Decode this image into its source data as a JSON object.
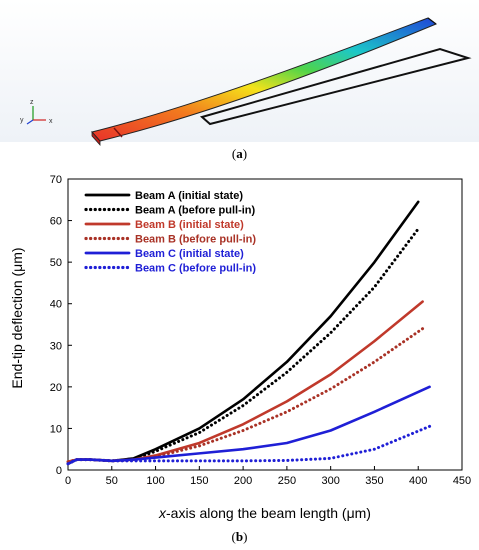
{
  "panel_a": {
    "label_open": "(",
    "label_letter": "a",
    "label_close": ")",
    "axis_triad": {
      "z": "z",
      "y": "y",
      "x": "x"
    }
  },
  "panel_b": {
    "label_open": "(",
    "label_letter": "b",
    "label_close": ")"
  },
  "chart_data": {
    "type": "line",
    "title": "",
    "xlabel_italic": "x",
    "xlabel_rest": "-axis along the beam length (μm)",
    "ylabel": "End-tip deflection (μm)",
    "xlim": [
      0,
      450
    ],
    "ylim": [
      0,
      70
    ],
    "xticks": [
      0,
      50,
      100,
      150,
      200,
      250,
      300,
      350,
      400,
      450
    ],
    "yticks": [
      0,
      10,
      20,
      30,
      40,
      50,
      60,
      70
    ],
    "grid": false,
    "legend_position": "top-left",
    "series": [
      {
        "name": "Beam A (initial state)",
        "color": "#000000",
        "style": "solid",
        "x": [
          0,
          10,
          25,
          50,
          75,
          100,
          150,
          200,
          250,
          300,
          350,
          400
        ],
        "y": [
          1.5,
          2.5,
          2.5,
          2.2,
          2.8,
          5.0,
          10.0,
          17.0,
          26.0,
          37.0,
          50.0,
          64.5
        ]
      },
      {
        "name": "Beam A (before pull-in)",
        "color": "#000000",
        "style": "dotted",
        "x": [
          0,
          10,
          25,
          50,
          75,
          100,
          150,
          200,
          250,
          300,
          350,
          400
        ],
        "y": [
          1.5,
          2.5,
          2.5,
          2.2,
          2.6,
          4.5,
          9.0,
          15.5,
          23.5,
          33.0,
          44.0,
          58.0
        ]
      },
      {
        "name": "Beam B (initial state)",
        "color": "#c0392b",
        "style": "solid",
        "x": [
          0,
          10,
          25,
          50,
          75,
          100,
          150,
          200,
          250,
          300,
          350,
          405
        ],
        "y": [
          2.0,
          2.5,
          2.5,
          2.2,
          2.5,
          3.5,
          6.5,
          11.0,
          16.5,
          23.0,
          31.0,
          40.5
        ]
      },
      {
        "name": "Beam B (before pull-in)",
        "color": "#a93226",
        "style": "dotted",
        "x": [
          0,
          10,
          25,
          50,
          75,
          100,
          150,
          200,
          250,
          300,
          350,
          405
        ],
        "y": [
          2.0,
          2.5,
          2.5,
          2.2,
          2.4,
          3.2,
          5.8,
          9.5,
          14.0,
          19.5,
          26.0,
          34.0
        ]
      },
      {
        "name": "Beam C (initial state)",
        "color": "#1f1fd6",
        "style": "solid",
        "x": [
          0,
          10,
          25,
          50,
          75,
          100,
          150,
          200,
          250,
          300,
          350,
          413
        ],
        "y": [
          1.5,
          2.5,
          2.5,
          2.2,
          2.5,
          3.0,
          4.0,
          5.0,
          6.5,
          9.5,
          14.0,
          20.0
        ]
      },
      {
        "name": "Beam C (before pull-in)",
        "color": "#1f1fd6",
        "style": "dotted",
        "x": [
          0,
          10,
          25,
          50,
          75,
          100,
          150,
          200,
          250,
          300,
          350,
          413
        ],
        "y": [
          1.5,
          2.5,
          2.5,
          2.2,
          2.2,
          2.2,
          2.2,
          2.2,
          2.3,
          2.8,
          5.0,
          10.5
        ]
      }
    ]
  }
}
